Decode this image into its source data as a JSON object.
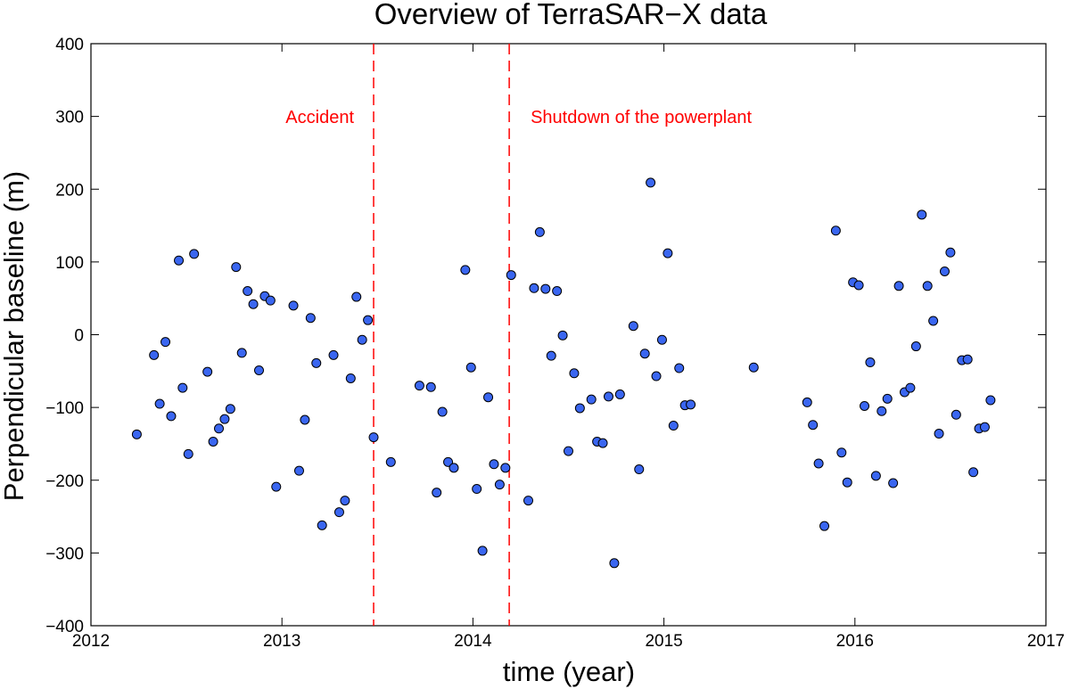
{
  "chart_data": {
    "type": "scatter",
    "title": "Overview of TerraSAR−X data",
    "xlabel": "time (year)",
    "ylabel": "Perpendicular baseline (m)",
    "xlim": [
      2012,
      2017
    ],
    "ylim": [
      -400,
      400
    ],
    "xticks": [
      2012,
      2013,
      2014,
      2015,
      2016,
      2017
    ],
    "yticks": [
      400,
      300,
      200,
      100,
      0,
      -100,
      -200,
      -300,
      -400
    ],
    "xtick_labels": [
      "2012",
      "2013",
      "2014",
      "2015",
      "2016",
      "2017"
    ],
    "ytick_labels": [
      "400",
      "300",
      "200",
      "100",
      "0",
      "−100",
      "−200",
      "−300",
      "−400"
    ],
    "grid": false,
    "marker_color": "#3a66f0",
    "annotation_color": "#ff0000",
    "events": [
      {
        "x": 2013.48,
        "label": "Accident",
        "label_side": "left"
      },
      {
        "x": 2014.19,
        "label": "Shutdown of the powerplant",
        "label_side": "right"
      }
    ],
    "points": [
      [
        2012.24,
        -137
      ],
      [
        2012.33,
        -28
      ],
      [
        2012.36,
        -95
      ],
      [
        2012.39,
        -10
      ],
      [
        2012.42,
        -112
      ],
      [
        2012.46,
        102
      ],
      [
        2012.48,
        -73
      ],
      [
        2012.51,
        -164
      ],
      [
        2012.54,
        111
      ],
      [
        2012.61,
        -51
      ],
      [
        2012.64,
        -147
      ],
      [
        2012.67,
        -129
      ],
      [
        2012.7,
        -116
      ],
      [
        2012.73,
        -102
      ],
      [
        2012.76,
        93
      ],
      [
        2012.79,
        -25
      ],
      [
        2012.82,
        60
      ],
      [
        2012.85,
        42
      ],
      [
        2012.88,
        -49
      ],
      [
        2012.91,
        53
      ],
      [
        2012.94,
        47
      ],
      [
        2012.97,
        -209
      ],
      [
        2013.06,
        40
      ],
      [
        2013.09,
        -187
      ],
      [
        2013.12,
        -117
      ],
      [
        2013.15,
        23
      ],
      [
        2013.18,
        -39
      ],
      [
        2013.21,
        -262
      ],
      [
        2013.27,
        -28
      ],
      [
        2013.3,
        -244
      ],
      [
        2013.33,
        -228
      ],
      [
        2013.36,
        -60
      ],
      [
        2013.39,
        52
      ],
      [
        2013.42,
        -7
      ],
      [
        2013.45,
        20
      ],
      [
        2013.48,
        -141
      ],
      [
        2013.57,
        -175
      ],
      [
        2013.72,
        -70
      ],
      [
        2013.78,
        -72
      ],
      [
        2013.81,
        -217
      ],
      [
        2013.84,
        -106
      ],
      [
        2013.87,
        -175
      ],
      [
        2013.9,
        -183
      ],
      [
        2013.96,
        89
      ],
      [
        2013.99,
        -45
      ],
      [
        2014.02,
        -212
      ],
      [
        2014.05,
        -297
      ],
      [
        2014.08,
        -86
      ],
      [
        2014.11,
        -178
      ],
      [
        2014.14,
        -206
      ],
      [
        2014.17,
        -183
      ],
      [
        2014.2,
        82
      ],
      [
        2014.29,
        -228
      ],
      [
        2014.32,
        64
      ],
      [
        2014.35,
        141
      ],
      [
        2014.38,
        63
      ],
      [
        2014.41,
        -29
      ],
      [
        2014.44,
        60
      ],
      [
        2014.47,
        -1
      ],
      [
        2014.5,
        -160
      ],
      [
        2014.53,
        -53
      ],
      [
        2014.56,
        -101
      ],
      [
        2014.62,
        -89
      ],
      [
        2014.65,
        -147
      ],
      [
        2014.68,
        -149
      ],
      [
        2014.71,
        -85
      ],
      [
        2014.74,
        -314
      ],
      [
        2014.77,
        -82
      ],
      [
        2014.84,
        12
      ],
      [
        2014.87,
        -185
      ],
      [
        2014.9,
        -26
      ],
      [
        2014.93,
        209
      ],
      [
        2014.96,
        -57
      ],
      [
        2014.99,
        -7
      ],
      [
        2015.02,
        112
      ],
      [
        2015.05,
        -125
      ],
      [
        2015.08,
        -46
      ],
      [
        2015.11,
        -97
      ],
      [
        2015.14,
        -96
      ],
      [
        2015.47,
        -45
      ],
      [
        2015.75,
        -93
      ],
      [
        2015.78,
        -124
      ],
      [
        2015.81,
        -177
      ],
      [
        2015.84,
        -263
      ],
      [
        2015.9,
        143
      ],
      [
        2015.93,
        -162
      ],
      [
        2015.96,
        -203
      ],
      [
        2015.99,
        72
      ],
      [
        2016.02,
        68
      ],
      [
        2016.05,
        -98
      ],
      [
        2016.08,
        -38
      ],
      [
        2016.11,
        -194
      ],
      [
        2016.14,
        -105
      ],
      [
        2016.17,
        -88
      ],
      [
        2016.2,
        -204
      ],
      [
        2016.23,
        67
      ],
      [
        2016.26,
        -79
      ],
      [
        2016.29,
        -73
      ],
      [
        2016.32,
        -16
      ],
      [
        2016.35,
        165
      ],
      [
        2016.38,
        67
      ],
      [
        2016.41,
        19
      ],
      [
        2016.44,
        -136
      ],
      [
        2016.47,
        87
      ],
      [
        2016.5,
        113
      ],
      [
        2016.53,
        -110
      ],
      [
        2016.56,
        -35
      ],
      [
        2016.59,
        -34
      ],
      [
        2016.62,
        -189
      ],
      [
        2016.65,
        -129
      ],
      [
        2016.68,
        -127
      ],
      [
        2016.71,
        -90
      ]
    ]
  }
}
